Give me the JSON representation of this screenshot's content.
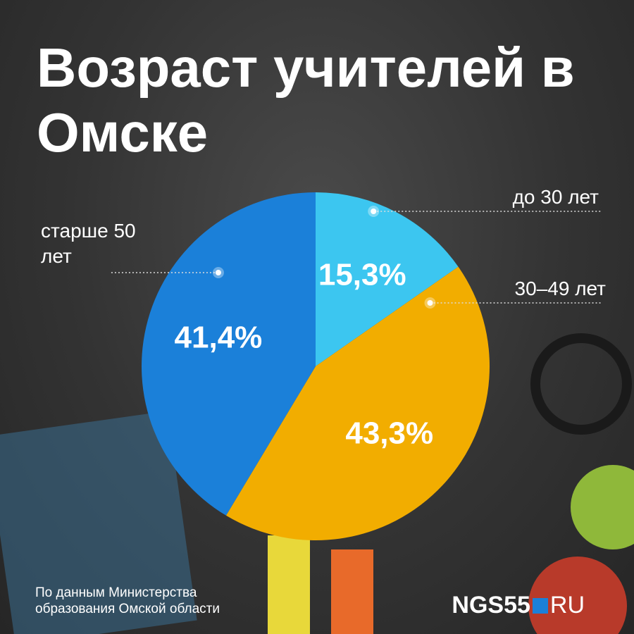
{
  "chart_data": {
    "type": "pie",
    "title": "Возраст учителей в Омске",
    "categories": [
      "до 30 лет",
      "30–49 лет",
      "старше 50 лет"
    ],
    "values": [
      15.3,
      43.3,
      41.4
    ],
    "value_labels": [
      "15,3%",
      "43,3%",
      "41,4%"
    ],
    "colors": [
      "#3cc6f0",
      "#f2ad00",
      "#1b80d9"
    ],
    "source": "По данным Министерства образования Омской области",
    "logo": {
      "name": "NGS55",
      "domain": "RU"
    }
  }
}
